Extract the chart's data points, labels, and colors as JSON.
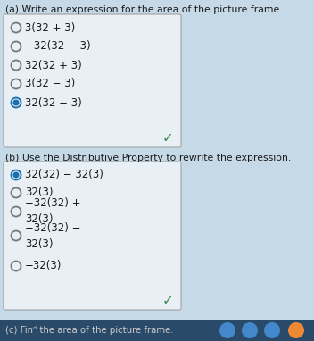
{
  "bg_color": "#c5d9e6",
  "box_bg": "#e8eff5",
  "box_border": "#999999",
  "title_a": "(a) Write an expression for the area of the picture frame.",
  "title_b": "(b) Use the Distributive Property to rewrite the expression.",
  "title_c": "(c) Finᵈ the area of the picture frame.",
  "options_a": [
    "3(32 + 3)",
    "−32(32 − 3)",
    "32(32 + 3)",
    "3(32 − 3)",
    "32(32 − 3)"
  ],
  "selected_a": 4,
  "options_b": [
    "32(32) − 32(3)",
    "32(3)",
    "−32(32) +\n32(3)",
    "−32(32) −\n32(3)",
    "−32(3)"
  ],
  "selected_b": 0,
  "checkmark_color": "#3a8a4a",
  "selected_color": "#1a6faf",
  "unselected_color": "#777777",
  "text_color": "#1a1a1a",
  "label_fontsize": 7.8,
  "option_fontsize": 8.5,
  "taskbar_color": "#2a4a6a",
  "bottom_text_color": "#cccccc",
  "taskbar_icons_colors": [
    "#4488cc",
    "#4488cc",
    "#4488cc",
    "#ee8833"
  ]
}
